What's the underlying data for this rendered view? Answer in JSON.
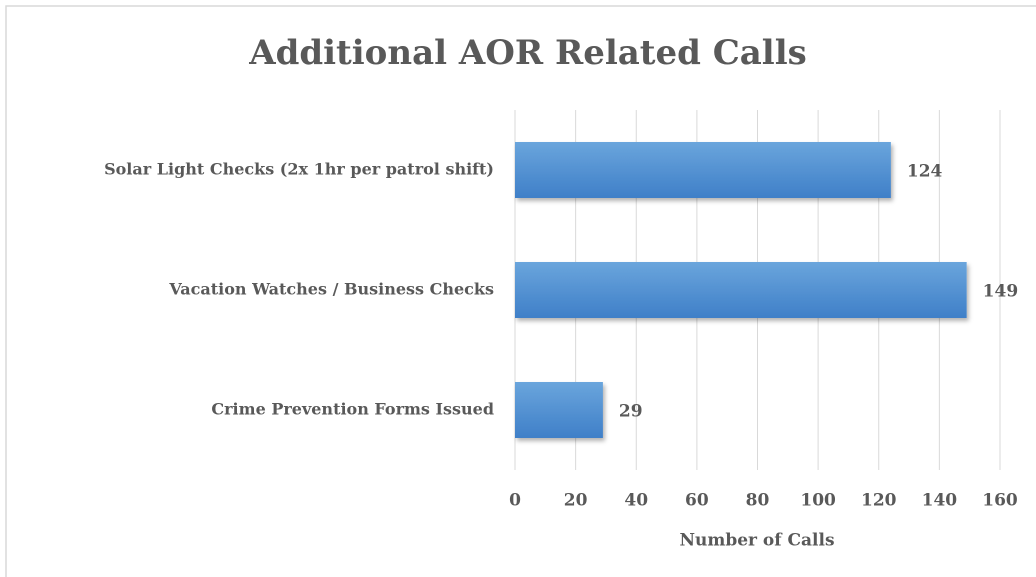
{
  "chart_data": {
    "type": "hbar",
    "title": "Additional AOR Related Calls",
    "categories": [
      "Solar Light Checks (2x 1hr per patrol shift)",
      "Vacation Watches / Business Checks",
      "Crime Prevention Forms Issued"
    ],
    "values": [
      124,
      149,
      29
    ],
    "color": "#5b9bd5",
    "xlabel": "Number of Calls",
    "xlim": [
      0,
      160
    ],
    "xticks": [
      0,
      20,
      40,
      60,
      80,
      100,
      120,
      140,
      160
    ],
    "grid": true
  }
}
